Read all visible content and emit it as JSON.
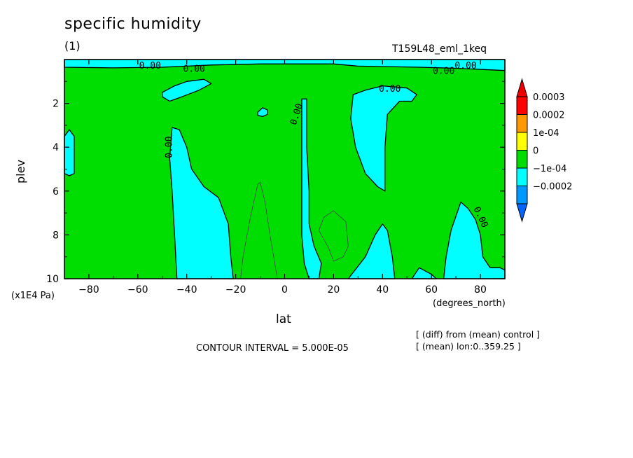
{
  "chart_data": {
    "type": "heatmap",
    "title": "specific humidity",
    "subtitle": "(1)",
    "run_name": "T159L48_eml_1keq",
    "xlabel": "lat",
    "ylabel": "plev",
    "x_unit": "(degrees_north)",
    "y_unit": "(x1E4 Pa)",
    "xlim": [
      -90,
      90
    ],
    "ylim": [
      10,
      0
    ],
    "x_ticks": [
      -80,
      -60,
      -40,
      -20,
      0,
      20,
      40,
      60,
      80
    ],
    "x_tick_labels": [
      "−80",
      "−60",
      "−40",
      "−20",
      "0",
      "20",
      "40",
      "60",
      "80"
    ],
    "y_ticks": [
      2,
      4,
      6,
      8,
      10
    ],
    "y_tick_labels": [
      "2",
      "4",
      "6",
      "8",
      "10"
    ],
    "contour_interval_text": "CONTOUR INTERVAL = 5.000E-05",
    "contour_labels": [
      "0.00",
      "0.00",
      "0.00",
      "0.00",
      "0.00",
      "0.00",
      "0.00",
      "0.00"
    ],
    "notes": [
      "[ (diff) from (mean) control ]",
      "[ (mean) lon:0..359.25 ]"
    ],
    "colorbar": {
      "levels": [
        {
          "label": "0.0003",
          "color": "#ff0000"
        },
        {
          "label": "0.0002",
          "color": "#ff9900"
        },
        {
          "label": "1e-04",
          "color": "#ffff00"
        },
        {
          "label": "0",
          "color": "#00dd00"
        },
        {
          "label": "−1e-04",
          "color": "#00ffff"
        },
        {
          "label": "−0.0002",
          "color": "#0099ff"
        }
      ],
      "over_color": "#ee0000",
      "under_color": "#0066ff"
    },
    "background_color": "#00dd00",
    "negative_region_color": "#00ffff",
    "regions_below_zero": [
      {
        "name": "top layer",
        "points": [
          [
            -90,
            0.0
          ],
          [
            90,
            0.0
          ],
          [
            90,
            0.5
          ],
          [
            70,
            0.4
          ],
          [
            55,
            0.35
          ],
          [
            30,
            0.3
          ],
          [
            20,
            0.2
          ],
          [
            -10,
            0.2
          ],
          [
            -30,
            0.25
          ],
          [
            -50,
            0.35
          ],
          [
            -70,
            0.38
          ],
          [
            -90,
            0.35
          ]
        ]
      },
      {
        "name": "southern upper",
        "points": [
          [
            -50,
            1.5
          ],
          [
            -45,
            1.2
          ],
          [
            -40,
            1.0
          ],
          [
            -33,
            0.9
          ],
          [
            -30,
            1.1
          ],
          [
            -35,
            1.4
          ],
          [
            -42,
            1.7
          ],
          [
            -47,
            1.9
          ],
          [
            -50,
            1.7
          ]
        ]
      },
      {
        "name": "small cell",
        "points": [
          [
            -11,
            2.4
          ],
          [
            -9,
            2.2
          ],
          [
            -7,
            2.3
          ],
          [
            -7,
            2.5
          ],
          [
            -9,
            2.6
          ],
          [
            -11,
            2.55
          ]
        ]
      },
      {
        "name": "southern column",
        "points": [
          [
            -46,
            3.1
          ],
          [
            -43,
            3.2
          ],
          [
            -40,
            4.0
          ],
          [
            -38,
            5.0
          ],
          [
            -33,
            5.8
          ],
          [
            -27,
            6.3
          ],
          [
            -23,
            7.5
          ],
          [
            -22,
            9.0
          ],
          [
            -21,
            10.0
          ],
          [
            -44,
            10.0
          ],
          [
            -45,
            8.0
          ],
          [
            -46,
            6.0
          ],
          [
            -47,
            4.5
          ]
        ]
      },
      {
        "name": "southern edge",
        "points": [
          [
            -90,
            3.5
          ],
          [
            -88,
            3.2
          ],
          [
            -86,
            3.5
          ],
          [
            -86,
            5.2
          ],
          [
            -88,
            5.3
          ],
          [
            -90,
            5.2
          ]
        ]
      },
      {
        "name": "equatorial column",
        "points": [
          [
            7,
            1.8
          ],
          [
            9,
            1.8
          ],
          [
            9,
            4.0
          ],
          [
            10,
            6.0
          ],
          [
            10,
            7.5
          ],
          [
            12,
            8.5
          ],
          [
            15,
            9.3
          ],
          [
            14,
            10.0
          ],
          [
            10,
            10.0
          ],
          [
            8,
            9.3
          ],
          [
            7,
            8.0
          ],
          [
            7,
            4.0
          ]
        ]
      },
      {
        "name": "northern column",
        "points": [
          [
            28,
            1.6
          ],
          [
            33,
            1.4
          ],
          [
            40,
            1.2
          ],
          [
            50,
            1.3
          ],
          [
            54,
            1.6
          ],
          [
            52,
            1.9
          ],
          [
            47,
            1.9
          ],
          [
            42,
            2.5
          ],
          [
            41,
            4.0
          ],
          [
            41,
            6.0
          ],
          [
            38,
            5.8
          ],
          [
            33,
            5.2
          ],
          [
            29,
            4.0
          ],
          [
            27,
            2.7
          ]
        ]
      },
      {
        "name": "northern lower",
        "points": [
          [
            26,
            10.0
          ],
          [
            33,
            9.0
          ],
          [
            37,
            8.0
          ],
          [
            40,
            7.5
          ],
          [
            42,
            7.8
          ],
          [
            44,
            9.0
          ],
          [
            45,
            10.0
          ]
        ]
      },
      {
        "name": "northern small",
        "points": [
          [
            52,
            10.0
          ],
          [
            55,
            9.5
          ],
          [
            60,
            9.8
          ],
          [
            62,
            10.0
          ]
        ]
      },
      {
        "name": "far north",
        "points": [
          [
            65,
            10.0
          ],
          [
            66,
            9.0
          ],
          [
            68,
            7.8
          ],
          [
            72,
            6.5
          ],
          [
            75,
            6.8
          ],
          [
            78,
            7.3
          ],
          [
            80,
            8.0
          ],
          [
            81,
            9.0
          ],
          [
            84,
            9.5
          ],
          [
            88,
            9.5
          ],
          [
            90,
            9.6
          ],
          [
            90,
            10.0
          ]
        ]
      }
    ]
  }
}
